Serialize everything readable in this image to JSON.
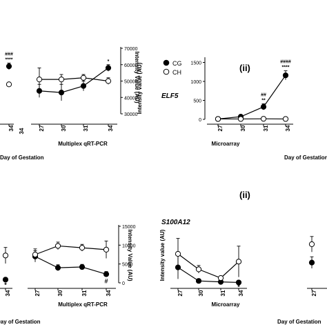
{
  "figure": {
    "panel_top": {
      "label": "(ii)",
      "gene": "ELF5"
    },
    "panel_bottom": {
      "label": "(ii)",
      "gene": "S100A12"
    },
    "xlabel_day": "Day of Gestation",
    "method_microarray": "Microarray",
    "method_qpcr": "Multiplex qRT-PCR",
    "ylabel_right": "Intensity Value (AU)",
    "ylabel_top_mid": "Intensity value (AU)",
    "ylabel_bottom_mid": "Intensity value (AU)",
    "legend": [
      {
        "name": "CG",
        "marker": "filled"
      },
      {
        "name": "CH",
        "marker": "open"
      }
    ],
    "days": [
      "27",
      "30",
      "31",
      "34"
    ],
    "edge_tick_34": "34"
  },
  "chart_data": [
    {
      "type": "line",
      "id": "top-left-partial",
      "x": [
        "34"
      ],
      "series": [
        {
          "name": "CG",
          "values": [
            59000
          ],
          "err": [
            2000
          ]
        },
        {
          "name": "CH",
          "values": [
            48000
          ],
          "err": [
            1000
          ]
        }
      ],
      "ylim": [
        30000,
        70000
      ],
      "annotations": [
        {
          "x": "34",
          "texts": [
            "###",
            "****"
          ]
        }
      ]
    },
    {
      "type": "line",
      "id": "top-qpcr",
      "x": [
        "27",
        "30",
        "31",
        "34"
      ],
      "xlabel": "Multiplex qRT-PCR",
      "ylabel": "Intensity Value (AU)",
      "yticks": [
        "30000",
        "40000",
        "50000",
        "60000",
        "70000"
      ],
      "ylim": [
        30000,
        70000
      ],
      "series": [
        {
          "name": "CG",
          "values": [
            44000,
            43000,
            47000,
            58000
          ],
          "err": [
            4000,
            5000,
            3000,
            2000
          ]
        },
        {
          "name": "CH",
          "values": [
            51000,
            51000,
            52000,
            50000
          ],
          "err": [
            7000,
            3000,
            2000,
            2000
          ]
        }
      ],
      "annotations": [
        {
          "x": "34",
          "texts": [
            "*"
          ]
        }
      ]
    },
    {
      "type": "line",
      "id": "top-microarray-elf5",
      "x": [
        "27",
        "30",
        "31",
        "34"
      ],
      "xlabel": "Microarray",
      "ylabel": "Intensity value (AU)",
      "yticks": [
        "0",
        "500",
        "1000",
        "1500"
      ],
      "ylim": [
        0,
        1600
      ],
      "series": [
        {
          "name": "CG",
          "values": [
            10,
            70,
            330,
            1160
          ],
          "err": [
            10,
            20,
            80,
            120
          ]
        },
        {
          "name": "CH",
          "values": [
            10,
            10,
            15,
            10
          ],
          "err": [
            5,
            5,
            5,
            5
          ]
        }
      ],
      "annotations": [
        {
          "x": "31",
          "texts": [
            "##",
            "**"
          ]
        },
        {
          "x": "34",
          "texts": [
            "####",
            "****"
          ]
        }
      ]
    },
    {
      "type": "line",
      "id": "bottom-left-partial",
      "x": [
        "34"
      ],
      "series": [
        {
          "name": "CG",
          "values": [
            1000
          ],
          "err": [
            400
          ]
        },
        {
          "name": "CH",
          "values": [
            8500
          ],
          "err": [
            2500
          ]
        }
      ],
      "ylim": [
        0,
        15000
      ],
      "annotations": [
        {
          "x": "34",
          "texts": [
            "*"
          ]
        }
      ]
    },
    {
      "type": "line",
      "id": "bottom-qpcr",
      "x": [
        "27",
        "30",
        "31",
        "34"
      ],
      "xlabel": "Multiplex qRT-PCR",
      "ylabel": "Intensity Value (AU)",
      "yticks": [
        "0",
        "5000",
        "10000",
        "15000"
      ],
      "ylim": [
        0,
        15000
      ],
      "series": [
        {
          "name": "CG",
          "values": [
            7000,
            4000,
            4200,
            2300
          ],
          "err": [
            1500,
            800,
            700,
            700
          ]
        },
        {
          "name": "CH",
          "values": [
            7500,
            9800,
            9300,
            8800
          ],
          "err": [
            1500,
            1000,
            900,
            2300
          ]
        }
      ],
      "annotations": [
        {
          "x": "34",
          "texts": [
            "#"
          ]
        }
      ]
    },
    {
      "type": "line",
      "id": "bottom-microarray-s100a12",
      "x": [
        "27",
        "30",
        "31",
        "34"
      ],
      "xlabel": "Microarray",
      "ylabel": "Intensity value (AU)",
      "ylim": [
        0,
        2500
      ],
      "series": [
        {
          "name": "CG",
          "values": [
            800,
            100,
            50,
            20
          ],
          "err": [
            600,
            100,
            30,
            20
          ]
        },
        {
          "name": "CH",
          "values": [
            1500,
            700,
            250,
            1100
          ],
          "err": [
            800,
            200,
            50,
            800
          ]
        }
      ],
      "annotations": [
        {
          "x": "34",
          "texts": [
            "*"
          ]
        }
      ]
    },
    {
      "type": "line",
      "id": "bottom-right-partial",
      "x": [
        "27"
      ],
      "series": [
        {
          "name": "CG",
          "values": [
            1050
          ],
          "err": [
            300
          ]
        },
        {
          "name": "CH",
          "values": [
            2000
          ],
          "err": [
            400
          ]
        }
      ],
      "ylim": [
        0,
        2500
      ]
    }
  ]
}
